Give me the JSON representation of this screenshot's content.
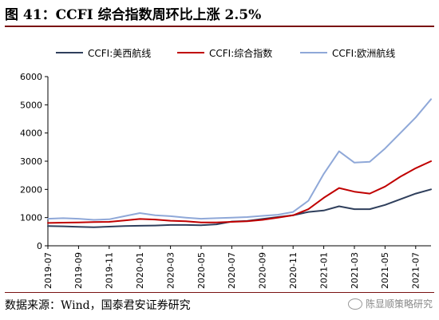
{
  "header": {
    "title": "图 41：CCFI 综合指数周环比上涨 2.5%"
  },
  "footer": {
    "source": "数据来源：Wind，国泰君安证券研究",
    "watermark": "陈显顺策略研究"
  },
  "colors": {
    "us_west": "#2f3f5c",
    "composite": "#c00000",
    "europe": "#8fa8d8",
    "title_rule": "#7a1212"
  },
  "chart_data": {
    "type": "line",
    "title": "",
    "xlabel": "",
    "ylabel": "",
    "ylim": [
      0,
      6000
    ],
    "yticks": [
      0,
      1000,
      2000,
      3000,
      4000,
      5000,
      6000
    ],
    "xlim": [
      "2019-07",
      "2021-08"
    ],
    "xticks": [
      "2019-07",
      "2019-09",
      "2019-11",
      "2020-01",
      "2020-03",
      "2020-05",
      "2020-07",
      "2020-09",
      "2020-11",
      "2021-01",
      "2021-03",
      "2021-05",
      "2021-07"
    ],
    "grid": false,
    "legend_position": "top",
    "series": [
      {
        "name": "CCFI:美西航线",
        "color": "#2f3f5c",
        "x": [
          "2019-07",
          "2019-08",
          "2019-09",
          "2019-10",
          "2019-11",
          "2019-12",
          "2020-01",
          "2020-02",
          "2020-03",
          "2020-04",
          "2020-05",
          "2020-06",
          "2020-07",
          "2020-08",
          "2020-09",
          "2020-10",
          "2020-11",
          "2020-12",
          "2021-01",
          "2021-02",
          "2021-03",
          "2021-04",
          "2021-05",
          "2021-06",
          "2021-07",
          "2021-08"
        ],
        "values": [
          700,
          690,
          670,
          660,
          680,
          700,
          710,
          720,
          740,
          740,
          730,
          760,
          860,
          880,
          950,
          1020,
          1080,
          1200,
          1250,
          1400,
          1300,
          1300,
          1450,
          1650,
          1850,
          2000
        ]
      },
      {
        "name": "CCFI:综合指数",
        "color": "#c00000",
        "x": [
          "2019-07",
          "2019-08",
          "2019-09",
          "2019-10",
          "2019-11",
          "2019-12",
          "2020-01",
          "2020-02",
          "2020-03",
          "2020-04",
          "2020-05",
          "2020-06",
          "2020-07",
          "2020-08",
          "2020-09",
          "2020-10",
          "2020-11",
          "2020-12",
          "2021-01",
          "2021-02",
          "2021-03",
          "2021-04",
          "2021-05",
          "2021-06",
          "2021-07",
          "2021-08"
        ],
        "values": [
          810,
          820,
          830,
          840,
          850,
          900,
          950,
          930,
          890,
          870,
          830,
          830,
          850,
          870,
          920,
          1000,
          1080,
          1300,
          1700,
          2050,
          1920,
          1850,
          2100,
          2450,
          2750,
          3000
        ]
      },
      {
        "name": "CCFI:欧洲航线",
        "color": "#8fa8d8",
        "x": [
          "2019-07",
          "2019-08",
          "2019-09",
          "2019-10",
          "2019-11",
          "2019-12",
          "2020-01",
          "2020-02",
          "2020-03",
          "2020-04",
          "2020-05",
          "2020-06",
          "2020-07",
          "2020-08",
          "2020-09",
          "2020-10",
          "2020-11",
          "2020-12",
          "2021-01",
          "2021-02",
          "2021-03",
          "2021-04",
          "2021-05",
          "2021-06",
          "2021-07",
          "2021-08"
        ],
        "values": [
          960,
          980,
          960,
          920,
          940,
          1050,
          1160,
          1080,
          1050,
          1000,
          960,
          980,
          1000,
          1020,
          1060,
          1100,
          1200,
          1600,
          2550,
          3350,
          2950,
          2980,
          3450,
          4000,
          4550,
          5200
        ]
      }
    ]
  }
}
